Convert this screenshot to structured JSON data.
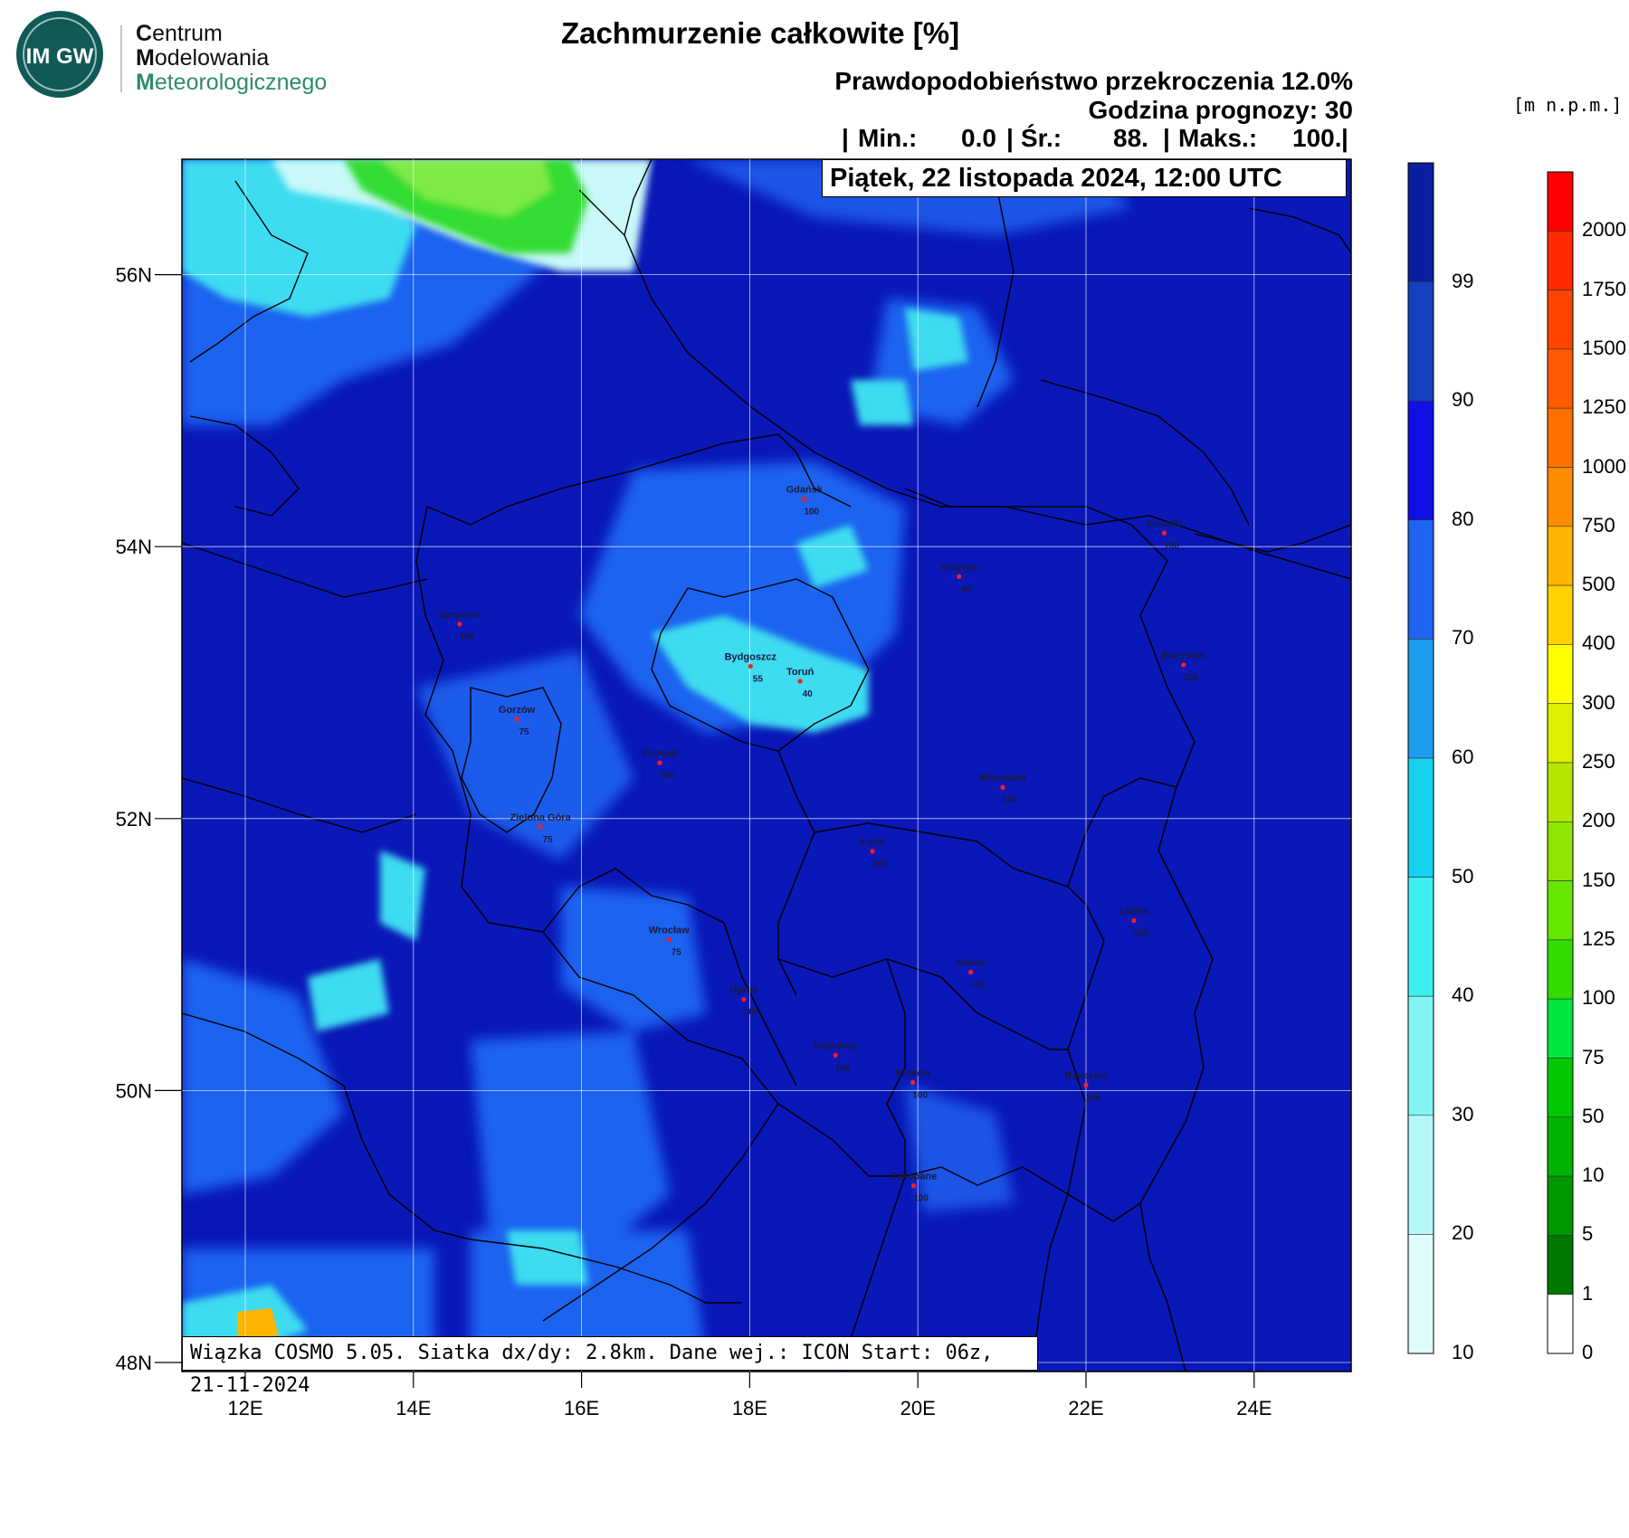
{
  "logo": {
    "badge": "IM GW",
    "line1_first": "C",
    "line1_rest": "entrum",
    "line2_first": "M",
    "line2_rest": "odelowania",
    "line3_first": "M",
    "line3_rest": "eteorologicznego",
    "colors": {
      "badge": "#0f5a57",
      "text_dark": "#111111",
      "text_teal": "#2f8a6c"
    }
  },
  "title": "Zachmurzenie całkowite [%]",
  "subtitle1": "Prawdopodobieństwo przekroczenia 12.0%",
  "subtitle2": "Godzina prognozy: 30",
  "stats": {
    "sep": "|",
    "min_label": "Min.:",
    "min_value": "0.0",
    "mean_label": "Śr.:",
    "mean_value": "88.",
    "max_label": "Maks.:",
    "max_value": "100."
  },
  "date_text": "Piątek, 22 listopada 2024, 12:00 UTC",
  "info_text": "Wiązka COSMO 5.05. Siatka dx/dy: 2.8km. Dane wej.: ICON Start: 06z, 21-11-2024",
  "unit_label": "[m n.p.m.]",
  "axes": {
    "lat_ticks": [
      "56N",
      "54N",
      "52N",
      "50N",
      "48N"
    ],
    "lon_ticks": [
      "12E",
      "14E",
      "16E",
      "18E",
      "20E",
      "22E",
      "24E"
    ]
  },
  "cloud_colorbar": {
    "labels": [
      "99",
      "90",
      "80",
      "70",
      "60",
      "50",
      "40",
      "30",
      "20",
      "10"
    ],
    "colors": [
      "#0a1ea0",
      "#1640c0",
      "#1010e6",
      "#1e64f0",
      "#1e9cf0",
      "#14d2f0",
      "#3cf0f0",
      "#82f4f4",
      "#b4f8f8",
      "#e0fbfb"
    ]
  },
  "terrain_colorbar": {
    "labels": [
      "2000",
      "1750",
      "1500",
      "1250",
      "1000",
      "750",
      "500",
      "400",
      "300",
      "250",
      "200",
      "150",
      "125",
      "100",
      "75",
      "50",
      "10",
      "5",
      "1",
      "0"
    ],
    "colors": [
      "#ff0000",
      "#ff2a00",
      "#ff4400",
      "#ff5a00",
      "#ff7000",
      "#ff8c00",
      "#ffb400",
      "#ffd200",
      "#ffff00",
      "#dcf000",
      "#b4e600",
      "#8ce600",
      "#64e600",
      "#32dc00",
      "#00e640",
      "#00c800",
      "#00b400",
      "#009600",
      "#007800",
      "#ffffff"
    ]
  },
  "map_colors": {
    "base": "#0a18b8",
    "mid": "#1e64f0",
    "light": "#3cdcf0",
    "pale": "#c8f8f8",
    "green": "#32dc32",
    "orange": "#ffb400"
  },
  "cities": [
    {
      "name": "Gdańsk",
      "value": "100",
      "lon": 18.65,
      "lat": 54.35
    },
    {
      "name": "Suwałki",
      "value": "100",
      "lon": 22.93,
      "lat": 54.1
    },
    {
      "name": "Olsztyn",
      "value": "90",
      "lon": 20.49,
      "lat": 53.78
    },
    {
      "name": "Szczecin",
      "value": "100",
      "lon": 14.55,
      "lat": 53.43
    },
    {
      "name": "Bydgoszcz",
      "value": "55",
      "lon": 18.01,
      "lat": 53.12
    },
    {
      "name": "Toruń",
      "value": "40",
      "lon": 18.6,
      "lat": 53.01
    },
    {
      "name": "Białystok",
      "value": "100",
      "lon": 23.16,
      "lat": 53.13
    },
    {
      "name": "Gorzów",
      "value": "75",
      "lon": 15.23,
      "lat": 52.73
    },
    {
      "name": "Poznań",
      "value": "100",
      "lon": 16.93,
      "lat": 52.41
    },
    {
      "name": "Warszawa",
      "value": "100",
      "lon": 21.01,
      "lat": 52.23
    },
    {
      "name": "Zielona Góra",
      "value": "75",
      "lon": 15.51,
      "lat": 51.94
    },
    {
      "name": "Łódź",
      "value": "100",
      "lon": 19.46,
      "lat": 51.76
    },
    {
      "name": "Lublin",
      "value": "100",
      "lon": 22.57,
      "lat": 51.25
    },
    {
      "name": "Wrocław",
      "value": "75",
      "lon": 17.04,
      "lat": 51.11
    },
    {
      "name": "Kielce",
      "value": "100",
      "lon": 20.63,
      "lat": 50.87
    },
    {
      "name": "Opole",
      "value": "100",
      "lon": 17.93,
      "lat": 50.67
    },
    {
      "name": "Katowice",
      "value": "100",
      "lon": 19.02,
      "lat": 50.26
    },
    {
      "name": "Kraków",
      "value": "100",
      "lon": 19.94,
      "lat": 50.06
    },
    {
      "name": "Rzeszów",
      "value": "100",
      "lon": 22.0,
      "lat": 50.04
    },
    {
      "name": "Zakopane",
      "value": "100",
      "lon": 19.95,
      "lat": 49.3
    }
  ]
}
